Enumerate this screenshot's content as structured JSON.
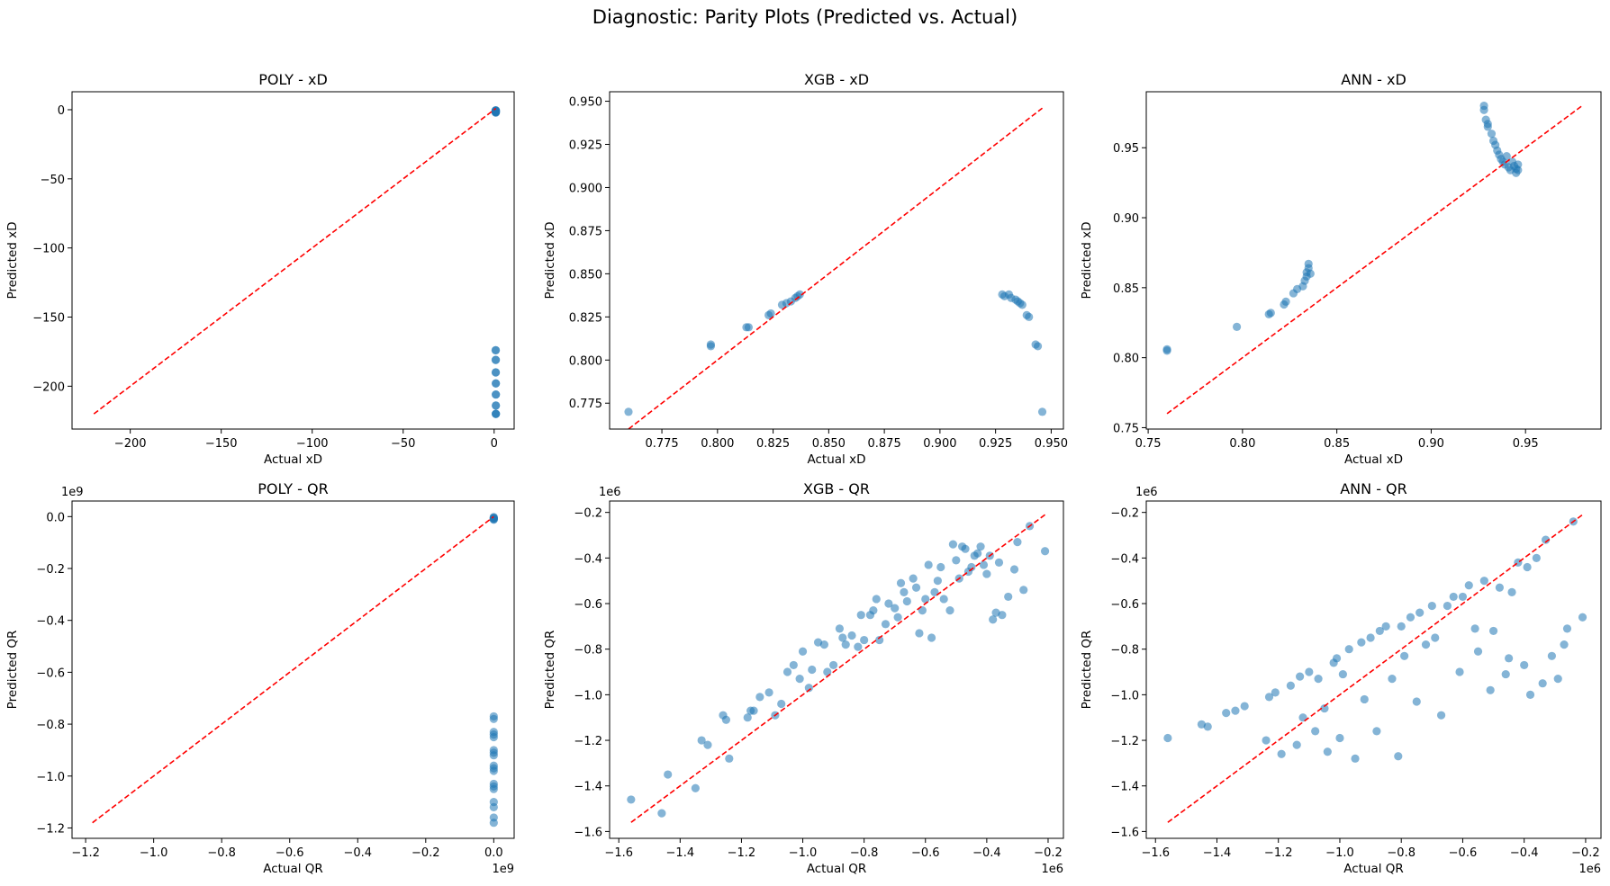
{
  "figure": {
    "title": "Diagnostic: Parity Plots (Predicted vs. Actual)"
  },
  "colors": {
    "points": "#1f77b4",
    "parity_line": "#ff0000",
    "axes": "#000000"
  },
  "chart_data": [
    {
      "type": "scatter",
      "title": "POLY - xD",
      "xlabel": "Actual xD",
      "ylabel": "Predicted xD",
      "xlim": [
        -232,
        11
      ],
      "ylim": [
        -231,
        13
      ],
      "xticks": [
        -200,
        -150,
        -100,
        -50,
        0
      ],
      "xtick_labels": [
        "−200",
        "−150",
        "−100",
        "−50",
        "0"
      ],
      "yticks": [
        -200,
        -150,
        -100,
        -50,
        0
      ],
      "ytick_labels": [
        "−200",
        "−150",
        "−100",
        "−50",
        "0"
      ],
      "parity_line": [
        -220,
        0.95
      ],
      "series": [
        {
          "x": [
            0.76,
            0.8,
            0.81,
            0.82,
            0.83,
            0.83,
            0.84,
            0.93,
            0.93,
            0.94,
            0.94,
            0.95,
            0.95,
            0.77,
            0.8,
            0.83,
            0.93,
            0.94,
            0.95,
            0.93,
            0.94,
            0.95,
            0.94,
            0.95,
            0.95,
            0.95,
            0.95,
            0.95
          ],
          "y": [
            -0.5,
            -0.8,
            -1.0,
            -1.2,
            -1.5,
            -1.8,
            -2.0,
            -0.6,
            -1.3,
            -2.1,
            -1.0,
            -0.4,
            -1.6,
            -174,
            -181,
            -190,
            -198,
            -206,
            -214,
            -220,
            -174,
            -181,
            -190,
            -198,
            -206,
            -214,
            -220,
            -220
          ]
        }
      ]
    },
    {
      "type": "scatter",
      "title": "XGB - xD",
      "xlabel": "Actual xD",
      "ylabel": "Predicted xD",
      "xlim": [
        0.7515,
        0.9555
      ],
      "ylim": [
        0.76,
        0.9555
      ],
      "xticks": [
        0.775,
        0.8,
        0.825,
        0.85,
        0.875,
        0.9,
        0.925,
        0.95
      ],
      "xtick_labels": [
        "0.775",
        "0.800",
        "0.825",
        "0.850",
        "0.875",
        "0.900",
        "0.925",
        "0.950"
      ],
      "yticks": [
        0.775,
        0.8,
        0.825,
        0.85,
        0.875,
        0.9,
        0.925,
        0.95
      ],
      "ytick_labels": [
        "0.775",
        "0.800",
        "0.825",
        "0.850",
        "0.875",
        "0.900",
        "0.925",
        "0.950"
      ],
      "parity_line": [
        0.76,
        0.946
      ],
      "series": [
        {
          "x": [
            0.76,
            0.797,
            0.797,
            0.813,
            0.814,
            0.823,
            0.824,
            0.829,
            0.831,
            0.833,
            0.835,
            0.836,
            0.837,
            0.928,
            0.929,
            0.931,
            0.932,
            0.934,
            0.935,
            0.936,
            0.937,
            0.939,
            0.94,
            0.943,
            0.944,
            0.946
          ],
          "y": [
            0.77,
            0.809,
            0.808,
            0.819,
            0.819,
            0.826,
            0.827,
            0.832,
            0.833,
            0.834,
            0.836,
            0.837,
            0.838,
            0.838,
            0.837,
            0.838,
            0.836,
            0.835,
            0.834,
            0.833,
            0.832,
            0.826,
            0.825,
            0.809,
            0.808,
            0.77
          ]
        }
      ]
    },
    {
      "type": "scatter",
      "title": "ANN - xD",
      "xlabel": "Actual xD",
      "ylabel": "Predicted xD",
      "xlim": [
        0.749,
        0.99
      ],
      "ylim": [
        0.749,
        0.99
      ],
      "xticks": [
        0.75,
        0.8,
        0.85,
        0.9,
        0.95
      ],
      "xtick_labels": [
        "0.75",
        "0.80",
        "0.85",
        "0.90",
        "0.95"
      ],
      "yticks": [
        0.75,
        0.8,
        0.85,
        0.9,
        0.95
      ],
      "ytick_labels": [
        "0.75",
        "0.80",
        "0.85",
        "0.90",
        "0.95"
      ],
      "parity_line": [
        0.76,
        0.98
      ],
      "series": [
        {
          "x": [
            0.76,
            0.76,
            0.797,
            0.814,
            0.815,
            0.822,
            0.823,
            0.827,
            0.829,
            0.832,
            0.833,
            0.834,
            0.834,
            0.835,
            0.835,
            0.836,
            0.928,
            0.928,
            0.929,
            0.93,
            0.93,
            0.932,
            0.933,
            0.934,
            0.935,
            0.936,
            0.937,
            0.938,
            0.939,
            0.94,
            0.941,
            0.942,
            0.943,
            0.944,
            0.945,
            0.945,
            0.946,
            0.946
          ],
          "y": [
            0.805,
            0.806,
            0.822,
            0.831,
            0.832,
            0.838,
            0.84,
            0.846,
            0.849,
            0.851,
            0.855,
            0.858,
            0.861,
            0.864,
            0.867,
            0.86,
            0.98,
            0.977,
            0.97,
            0.967,
            0.965,
            0.96,
            0.955,
            0.952,
            0.948,
            0.945,
            0.942,
            0.94,
            0.938,
            0.944,
            0.936,
            0.934,
            0.94,
            0.937,
            0.935,
            0.932,
            0.938,
            0.934
          ]
        }
      ]
    },
    {
      "type": "scatter",
      "title": "POLY - QR",
      "xlabel": "Actual QR",
      "ylabel": "Predicted QR",
      "axis_offset_x": "1e9",
      "axis_offset_y": "1e9",
      "xlim": [
        -1.24,
        0.06
      ],
      "ylim": [
        -1.24,
        0.06
      ],
      "xticks": [
        -1.2,
        -1.0,
        -0.8,
        -0.6,
        -0.4,
        -0.2,
        0.0
      ],
      "xtick_labels": [
        "−1.2",
        "−1.0",
        "−0.8",
        "−0.6",
        "−0.4",
        "−0.2",
        "0.0"
      ],
      "yticks": [
        -1.2,
        -1.0,
        -0.8,
        -0.6,
        -0.4,
        -0.2,
        0.0
      ],
      "ytick_labels": [
        "−1.2",
        "−1.0",
        "−0.8",
        "−0.6",
        "−0.4",
        "−0.2",
        "0.0"
      ],
      "parity_line": [
        -1.18,
        -0.0002
      ],
      "series": [
        {
          "x": [
            0,
            0,
            0,
            0,
            0,
            0,
            0,
            0,
            0,
            0,
            0,
            0,
            0,
            0,
            0,
            0,
            0,
            0,
            0,
            0,
            0,
            0,
            0,
            0
          ],
          "y": [
            -0.002,
            -0.004,
            -0.006,
            -0.008,
            -0.01,
            -0.012,
            -0.77,
            -0.78,
            -0.83,
            -0.85,
            -0.9,
            -0.92,
            -0.96,
            -0.98,
            -1.03,
            -1.05,
            -1.1,
            -1.12,
            -1.16,
            -1.18,
            -0.84,
            -0.97,
            -1.04,
            -0.91
          ]
        }
      ]
    },
    {
      "type": "scatter",
      "title": "XGB - QR",
      "xlabel": "Actual QR",
      "ylabel": "Predicted QR",
      "axis_offset_x": "1e6",
      "axis_offset_y": "1e6",
      "xlim": [
        -1.63,
        -0.15
      ],
      "ylim": [
        -1.63,
        -0.15
      ],
      "xticks": [
        -1.6,
        -1.4,
        -1.2,
        -1.0,
        -0.8,
        -0.6,
        -0.4,
        -0.2
      ],
      "xtick_labels": [
        "−1.6",
        "−1.4",
        "−1.2",
        "−1.0",
        "−0.8",
        "−0.6",
        "−0.4",
        "−0.2"
      ],
      "yticks": [
        -1.6,
        -1.4,
        -1.2,
        -1.0,
        -0.8,
        -0.6,
        -0.4,
        -0.2
      ],
      "ytick_labels": [
        "−1.6",
        "−1.4",
        "−1.2",
        "−1.0",
        "−0.8",
        "−0.6",
        "−0.4",
        "−0.2"
      ],
      "parity_line": [
        -1.56,
        -0.21
      ],
      "series": [
        {
          "x": [
            -1.56,
            -1.46,
            -1.44,
            -1.35,
            -1.33,
            -1.31,
            -1.26,
            -1.25,
            -1.24,
            -1.18,
            -1.17,
            -1.16,
            -1.14,
            -1.11,
            -1.09,
            -1.07,
            -1.05,
            -1.03,
            -1.01,
            -1.0,
            -0.98,
            -0.97,
            -0.95,
            -0.93,
            -0.92,
            -0.9,
            -0.88,
            -0.87,
            -0.86,
            -0.84,
            -0.82,
            -0.81,
            -0.8,
            -0.78,
            -0.77,
            -0.76,
            -0.75,
            -0.73,
            -0.72,
            -0.7,
            -0.69,
            -0.68,
            -0.67,
            -0.66,
            -0.64,
            -0.63,
            -0.62,
            -0.61,
            -0.6,
            -0.59,
            -0.58,
            -0.57,
            -0.56,
            -0.55,
            -0.54,
            -0.52,
            -0.51,
            -0.5,
            -0.49,
            -0.48,
            -0.47,
            -0.46,
            -0.45,
            -0.44,
            -0.43,
            -0.42,
            -0.41,
            -0.4,
            -0.39,
            -0.38,
            -0.37,
            -0.36,
            -0.35,
            -0.33,
            -0.31,
            -0.3,
            -0.28,
            -0.26,
            -0.21
          ],
          "y": [
            -1.46,
            -1.52,
            -1.35,
            -1.41,
            -1.2,
            -1.22,
            -1.09,
            -1.11,
            -1.28,
            -1.1,
            -1.07,
            -1.07,
            -1.01,
            -0.99,
            -1.09,
            -1.04,
            -0.9,
            -0.87,
            -0.93,
            -0.81,
            -0.97,
            -0.89,
            -0.77,
            -0.78,
            -0.9,
            -0.87,
            -0.71,
            -0.75,
            -0.78,
            -0.74,
            -0.79,
            -0.65,
            -0.76,
            -0.65,
            -0.63,
            -0.58,
            -0.76,
            -0.69,
            -0.6,
            -0.62,
            -0.66,
            -0.51,
            -0.55,
            -0.59,
            -0.49,
            -0.53,
            -0.73,
            -0.63,
            -0.58,
            -0.43,
            -0.75,
            -0.55,
            -0.5,
            -0.44,
            -0.58,
            -0.63,
            -0.34,
            -0.41,
            -0.49,
            -0.35,
            -0.36,
            -0.46,
            -0.44,
            -0.39,
            -0.38,
            -0.35,
            -0.43,
            -0.47,
            -0.39,
            -0.67,
            -0.64,
            -0.42,
            -0.65,
            -0.57,
            -0.45,
            -0.33,
            -0.54,
            -0.26,
            -0.37
          ]
        }
      ]
    },
    {
      "type": "scatter",
      "title": "ANN - QR",
      "xlabel": "Actual QR",
      "ylabel": "Predicted QR",
      "axis_offset_x": "1e6",
      "axis_offset_y": "1e6",
      "xlim": [
        -1.63,
        -0.15
      ],
      "ylim": [
        -1.63,
        -0.15
      ],
      "xticks": [
        -1.6,
        -1.4,
        -1.2,
        -1.0,
        -0.8,
        -0.6,
        -0.4,
        -0.2
      ],
      "xtick_labels": [
        "−1.6",
        "−1.4",
        "−1.2",
        "−1.0",
        "−0.8",
        "−0.6",
        "−0.4",
        "−0.2"
      ],
      "yticks": [
        -1.6,
        -1.4,
        -1.2,
        -1.0,
        -0.8,
        -0.6,
        -0.4,
        -0.2
      ],
      "ytick_labels": [
        "−1.6",
        "−1.4",
        "−1.2",
        "−1.0",
        "−0.8",
        "−0.6",
        "−0.4",
        "−0.2"
      ],
      "parity_line": [
        -1.56,
        -0.21
      ],
      "series": [
        {
          "x": [
            -1.56,
            -1.45,
            -1.43,
            -1.37,
            -1.34,
            -1.31,
            -1.24,
            -1.23,
            -1.21,
            -1.19,
            -1.16,
            -1.14,
            -1.13,
            -1.12,
            -1.1,
            -1.08,
            -1.07,
            -1.05,
            -1.04,
            -1.02,
            -1.01,
            -1.0,
            -0.99,
            -0.97,
            -0.95,
            -0.93,
            -0.92,
            -0.9,
            -0.88,
            -0.87,
            -0.85,
            -0.83,
            -0.81,
            -0.8,
            -0.79,
            -0.77,
            -0.75,
            -0.74,
            -0.72,
            -0.7,
            -0.69,
            -0.67,
            -0.65,
            -0.63,
            -0.61,
            -0.6,
            -0.58,
            -0.56,
            -0.55,
            -0.53,
            -0.51,
            -0.5,
            -0.48,
            -0.46,
            -0.45,
            -0.44,
            -0.42,
            -0.4,
            -0.39,
            -0.38,
            -0.36,
            -0.34,
            -0.33,
            -0.31,
            -0.29,
            -0.27,
            -0.26,
            -0.24,
            -0.21
          ],
          "y": [
            -1.19,
            -1.13,
            -1.14,
            -1.08,
            -1.07,
            -1.05,
            -1.2,
            -1.01,
            -0.99,
            -1.26,
            -0.96,
            -1.22,
            -0.92,
            -1.1,
            -0.9,
            -1.16,
            -0.93,
            -1.06,
            -1.25,
            -0.86,
            -0.84,
            -1.19,
            -0.91,
            -0.8,
            -1.28,
            -0.77,
            -1.02,
            -0.75,
            -1.16,
            -0.72,
            -0.7,
            -0.93,
            -1.27,
            -0.7,
            -0.83,
            -0.66,
            -1.03,
            -0.64,
            -0.78,
            -0.61,
            -0.75,
            -1.09,
            -0.61,
            -0.57,
            -0.9,
            -0.57,
            -0.52,
            -0.71,
            -0.81,
            -0.5,
            -0.98,
            -0.72,
            -0.53,
            -0.91,
            -0.84,
            -0.55,
            -0.42,
            -0.87,
            -0.44,
            -1.0,
            -0.4,
            -0.95,
            -0.32,
            -0.83,
            -0.93,
            -0.78,
            -0.71,
            -0.24,
            -0.66
          ]
        }
      ]
    }
  ]
}
